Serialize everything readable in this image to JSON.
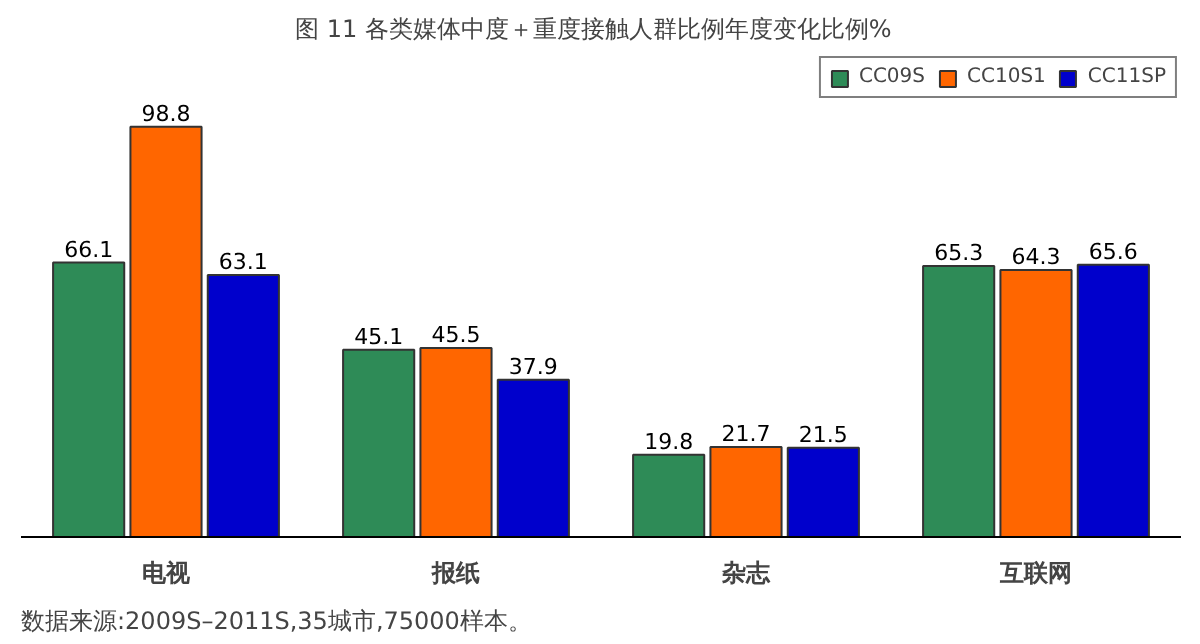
{
  "chart_data": {
    "type": "bar",
    "title": "图 11   各类媒体中度＋重度接触人群比例年度变化比例%",
    "categories": [
      "电视",
      "报纸",
      "杂志",
      "互联网"
    ],
    "series": [
      {
        "name": "CC09S",
        "color": "#2e8b57",
        "values": [
          66.1,
          45.1,
          19.8,
          65.3
        ]
      },
      {
        "name": "CC10S1",
        "color": "#ff6600",
        "values": [
          98.8,
          45.5,
          21.7,
          64.3
        ]
      },
      {
        "name": "CC11SP",
        "color": "#0000cc",
        "values": [
          63.1,
          37.9,
          21.5,
          65.6
        ]
      }
    ],
    "data_labels": true,
    "legend": "top right",
    "grid": false,
    "tick_labels": "x",
    "annotations": [
      "数据来源:2009S–2011S,35城市,75000样本。"
    ]
  }
}
